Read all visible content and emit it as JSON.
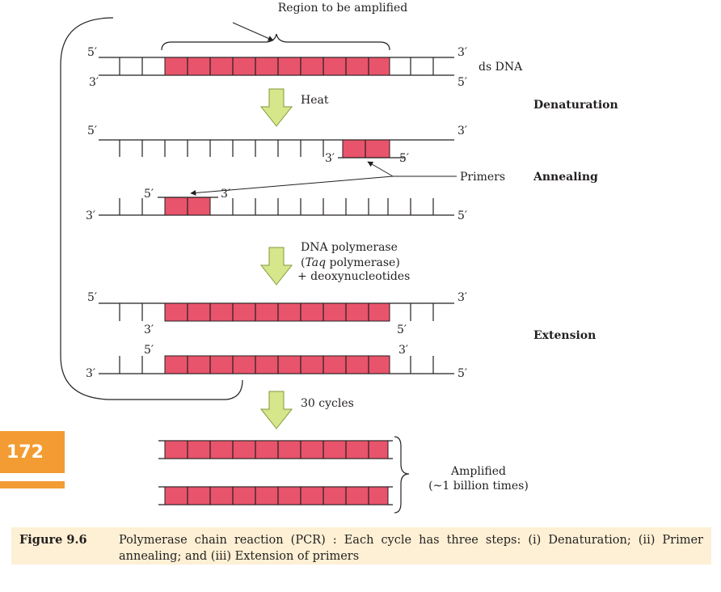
{
  "labels": {
    "region": "Region to be amplified",
    "ds_dna": "ds DNA",
    "heat": "Heat",
    "primers": "Primers",
    "polymerase_line1": "DNA polymerase",
    "polymerase_line2_italic": "Taq",
    "polymerase_line2_rest": " polymerase)",
    "polymerase_line3": "+ deoxynucleotides",
    "cycles": "30 cycles",
    "amplified_line1": "Amplified",
    "amplified_line2": "(~1 billion times)"
  },
  "steps": {
    "denaturation": "Denaturation",
    "annealing": "Annealing",
    "extension": "Extension"
  },
  "ends": {
    "five": "5′",
    "three": "3′"
  },
  "page_number": "172",
  "caption": {
    "number": "Figure 9.6",
    "text": "Polymerase chain reaction (PCR) : Each cycle has three steps: (i) Denaturation; (ii) Primer annealing; and (iii) Extension of primers"
  },
  "colors": {
    "segment": "#e8546b",
    "arrow": "#d6e68a",
    "badge": "#f39c33",
    "caption_bg": "#fdf0d4"
  }
}
